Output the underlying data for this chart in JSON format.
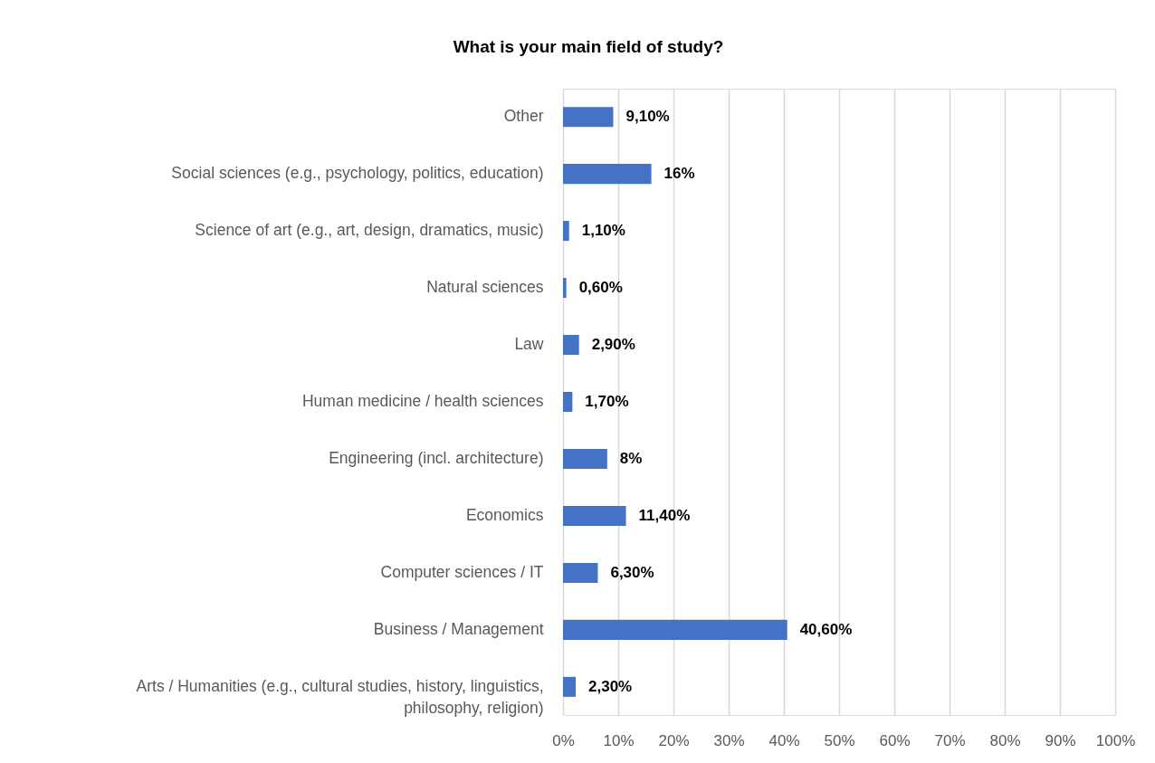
{
  "chart_data": {
    "type": "bar",
    "orientation": "horizontal",
    "title": "What is your main field of study?",
    "categories": [
      "Other",
      "Social sciences (e.g., psychology, politics, education)",
      "Science of art (e.g., art, design, dramatics, music)",
      "Natural sciences",
      "Law",
      "Human medicine / health sciences",
      "Engineering (incl. architecture)",
      "Economics",
      "Computer sciences / IT",
      "Business / Management",
      "Arts / Humanities (e.g., cultural studies, history, linguistics, philosophy, religion)"
    ],
    "values": [
      9.1,
      16,
      1.1,
      0.6,
      2.9,
      1.7,
      8,
      11.4,
      6.3,
      40.6,
      2.3
    ],
    "value_labels": [
      "9,10%",
      "16%",
      "1,10%",
      "0,60%",
      "2,90%",
      "1,70%",
      "8%",
      "11,40%",
      "6,30%",
      "40,60%",
      "2,30%"
    ],
    "color": "#4472c4",
    "xlim": [
      0,
      100
    ],
    "xticks": [
      {
        "value": 0,
        "label": "0%"
      },
      {
        "value": 10,
        "label": "10%"
      },
      {
        "value": 20,
        "label": "20%"
      },
      {
        "value": 30,
        "label": "30%"
      },
      {
        "value": 40,
        "label": "40%"
      },
      {
        "value": 50,
        "label": "50%"
      },
      {
        "value": 60,
        "label": "60%"
      },
      {
        "value": 70,
        "label": "70%"
      },
      {
        "value": 80,
        "label": "80%"
      },
      {
        "value": 90,
        "label": "90%"
      },
      {
        "value": 100,
        "label": "100%"
      }
    ],
    "grid": "x"
  }
}
